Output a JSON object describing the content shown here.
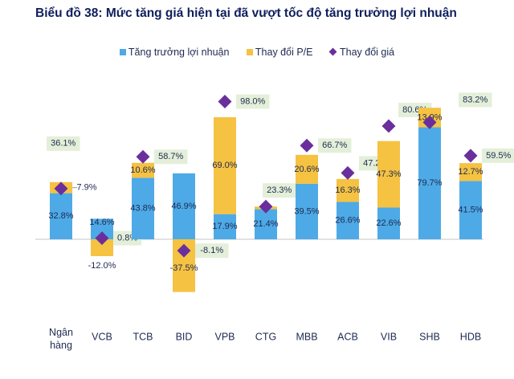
{
  "chart_data": {
    "type": "bar",
    "stacked": true,
    "title": "Biểu đồ 38: Mức tăng giá hiện tại đã vượt tốc độ tăng trưởng lợi nhuận",
    "categories": [
      "Ngân hàng",
      "VCB",
      "TCB",
      "BID",
      "VPB",
      "CTG",
      "MBB",
      "ACB",
      "VIB",
      "SHB",
      "HDB"
    ],
    "series": [
      {
        "name": "Tăng trưởng lợi nhuận",
        "type": "bar",
        "color": "#4eaae6",
        "values": [
          32.8,
          14.6,
          43.8,
          46.9,
          17.9,
          21.4,
          39.5,
          26.6,
          22.6,
          79.7,
          41.5
        ],
        "labels": [
          "32.8%",
          "14.6%",
          "43.8%",
          "46.9%",
          "17.9%",
          "21.4%",
          "39.5%",
          "26.6%",
          "22.6%",
          "79.7%",
          "41.5%"
        ]
      },
      {
        "name": "Thay đổi P/E",
        "type": "bar",
        "color": "#f5c242",
        "values": [
          7.9,
          -12.0,
          10.6,
          -37.5,
          69.0,
          1.9,
          20.6,
          16.3,
          47.3,
          13.9,
          12.7
        ],
        "labels": [
          "7.9%",
          "-12.0%",
          "10.6%",
          "-37.5%",
          "69.0%",
          "",
          "20.6%",
          "16.3%",
          "47.3%",
          "13.9%",
          "12.7%"
        ]
      },
      {
        "name": "Thay đổi giá",
        "type": "scatter",
        "marker": "diamond",
        "color": "#6a2f9c",
        "values": [
          36.1,
          0.8,
          58.7,
          -8.1,
          98.0,
          23.3,
          66.7,
          47.2,
          80.6,
          83.2,
          59.5
        ],
        "labels": [
          "36.1%",
          "0.8%",
          "58.7%",
          "-8.1%",
          "98.0%",
          "23.3%",
          "66.7%",
          "47.2%",
          "80.6%",
          "83.2%",
          "59.5%"
        ]
      }
    ],
    "label_box_color": "#e4efd9",
    "legend": "top",
    "grid": false,
    "y_axis_visible": false
  }
}
